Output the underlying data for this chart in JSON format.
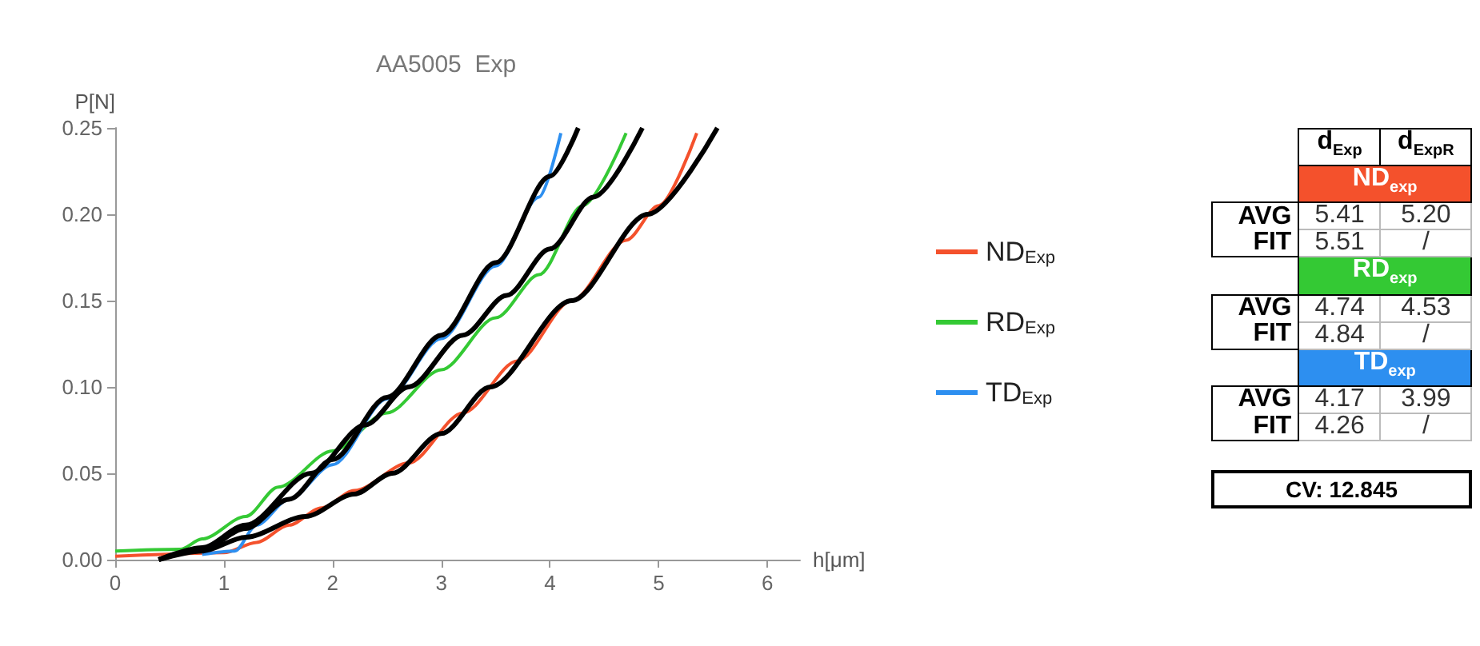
{
  "chart_data": {
    "type": "line",
    "title": "AA5005  Exp",
    "xlabel": "h[μm]",
    "ylabel": "P[N]",
    "xlim": [
      0,
      6.3
    ],
    "xticks": [
      0,
      1,
      2,
      3,
      4,
      5,
      6
    ],
    "ylim": [
      0,
      0.25
    ],
    "yticks": [
      {
        "value": 0,
        "label": "0.00"
      },
      {
        "value": 0.05,
        "label": "0.05"
      },
      {
        "value": 0.1,
        "label": "0.10"
      },
      {
        "value": 0.15,
        "label": "0.15"
      },
      {
        "value": 0.2,
        "label": "0.20"
      },
      {
        "value": 0.25,
        "label": "0.25"
      }
    ],
    "grid": false,
    "legend": "right",
    "series": [
      {
        "name": "ND$_{Exp}$",
        "color": "#f4512c",
        "x": [
          0,
          1.0,
          1.3,
          1.6,
          1.9,
          2.2,
          2.7,
          3.2,
          3.7,
          4.2,
          4.7,
          5.0,
          5.35
        ],
        "values": [
          0.002,
          0.004,
          0.01,
          0.02,
          0.03,
          0.04,
          0.056,
          0.085,
          0.115,
          0.15,
          0.185,
          0.205,
          0.247
        ]
      },
      {
        "name": "RD$_{Exp}$",
        "color": "#34c934",
        "x": [
          0,
          0.6,
          0.8,
          1.2,
          1.5,
          2.0,
          2.5,
          3.0,
          3.5,
          3.9,
          4.3,
          4.7
        ],
        "values": [
          0.005,
          0.006,
          0.012,
          0.025,
          0.042,
          0.063,
          0.085,
          0.11,
          0.14,
          0.165,
          0.205,
          0.247
        ]
      },
      {
        "name": "TD$_{Exp}$",
        "color": "#2d8ff0",
        "x": [
          0.8,
          1.1,
          1.3,
          1.6,
          2.0,
          2.5,
          3.0,
          3.5,
          3.9,
          4.1
        ],
        "values": [
          0.003,
          0.005,
          0.02,
          0.035,
          0.055,
          0.093,
          0.128,
          0.17,
          0.21,
          0.247
        ]
      },
      {
        "color": "#000000",
        "x": [
          0.4,
          0.8,
          1.2,
          1.75,
          2.2,
          2.55,
          3.0,
          3.45,
          4.2,
          4.9,
          5.54
        ],
        "values": [
          0,
          0.005,
          0.013,
          0.025,
          0.038,
          0.05,
          0.073,
          0.1,
          0.15,
          0.2,
          0.25
        ]
      },
      {
        "color": "#000000",
        "x": [
          0.4,
          0.8,
          1.2,
          1.8,
          2.3,
          2.7,
          3.2,
          3.6,
          4.0,
          4.4,
          4.85
        ],
        "values": [
          0,
          0.007,
          0.02,
          0.05,
          0.078,
          0.1,
          0.13,
          0.153,
          0.18,
          0.21,
          0.25
        ]
      },
      {
        "color": "#000000",
        "x": [
          0.4,
          0.8,
          1.2,
          1.6,
          2.0,
          2.5,
          3.0,
          3.5,
          4.0,
          4.26
        ],
        "values": [
          0,
          0.006,
          0.018,
          0.035,
          0.058,
          0.094,
          0.13,
          0.172,
          0.222,
          0.25
        ]
      }
    ],
    "annotations": [
      "d$_{Exp}$",
      "d$_{ExpR}$",
      "ND$_{exp}$",
      "AVG",
      "5.41",
      "5.20",
      "FIT",
      "5.51",
      "/",
      "RD$_{exp}$",
      "AVG",
      "4.74",
      "4.53",
      "FIT",
      "4.84",
      "/",
      "TD$_{exp}$",
      "AVG",
      "4.17",
      "3.99",
      "FIT",
      "4.26",
      "/",
      "CV: 12.845"
    ]
  }
}
